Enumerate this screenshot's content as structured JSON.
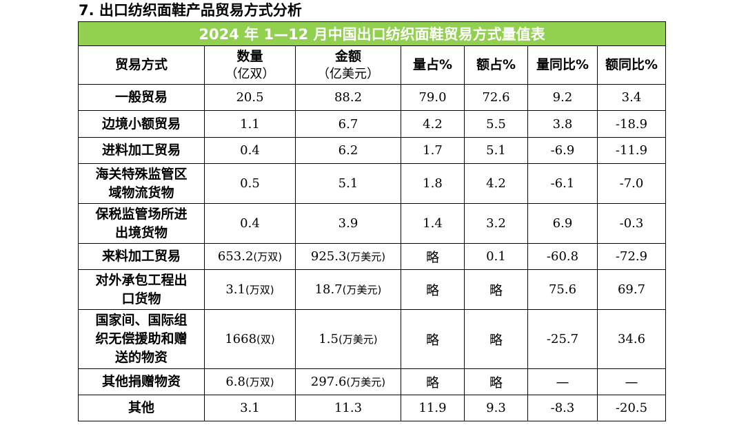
{
  "section_title": "7. 出口纺织面鞋产品贸易方式分析",
  "table_title": "2024 年 1—12 月中国出口纺织面鞋贸易方式量值表",
  "headers": {
    "mode": "贸易方式",
    "qty": "数量",
    "qty_unit": "（亿双）",
    "amt": "金额",
    "amt_unit": "（亿美元）",
    "qty_share": "量占%",
    "amt_share": "额占%",
    "qty_yoy": "量同比%",
    "amt_yoy": "额同比%"
  },
  "rows": [
    {
      "mode_lines": [
        "一般贸易"
      ],
      "qty": "20.5",
      "amt": "88.2",
      "qty_share": "79.0",
      "amt_share": "72.6",
      "qty_yoy": "9.2",
      "amt_yoy": "3.4"
    },
    {
      "mode_lines": [
        "边境小额贸易"
      ],
      "qty": "1.1",
      "amt": "6.7",
      "qty_share": "4.2",
      "amt_share": "5.5",
      "qty_yoy": "3.8",
      "amt_yoy": "-18.9"
    },
    {
      "mode_lines": [
        "进料加工贸易"
      ],
      "qty": "0.4",
      "amt": "6.2",
      "qty_share": "1.7",
      "amt_share": "5.1",
      "qty_yoy": "-6.9",
      "amt_yoy": "-11.9"
    },
    {
      "mode_lines": [
        "海关特殊监管区",
        "域物流货物"
      ],
      "qty": "0.5",
      "amt": "5.1",
      "qty_share": "1.8",
      "amt_share": "4.2",
      "qty_yoy": "-6.1",
      "amt_yoy": "-7.0"
    },
    {
      "mode_lines": [
        "保税监管场所进",
        "出境货物"
      ],
      "qty": "0.4",
      "amt": "3.9",
      "qty_share": "1.4",
      "amt_share": "3.2",
      "qty_yoy": "6.9",
      "amt_yoy": "-0.3"
    },
    {
      "mode_lines": [
        "来料加工贸易"
      ],
      "qty": "653.2",
      "qty_unit": "(万双)",
      "amt": "925.3",
      "amt_unit": "(万美元)",
      "qty_share": "略",
      "amt_share": "0.1",
      "qty_yoy": "-60.8",
      "amt_yoy": "-72.9"
    },
    {
      "mode_lines": [
        "对外承包工程出",
        "口货物"
      ],
      "qty": "3.1",
      "qty_unit": "(万双)",
      "amt": "18.7",
      "amt_unit": "(万美元)",
      "qty_share": "略",
      "amt_share": "略",
      "qty_yoy": "75.6",
      "amt_yoy": "69.7"
    },
    {
      "mode_lines": [
        "国家间、国际组",
        "织无偿援助和赠",
        "送的物资"
      ],
      "qty": "1668",
      "qty_unit": "(双)",
      "amt": "1.5",
      "amt_unit": "(万美元)",
      "qty_share": "略",
      "amt_share": "略",
      "qty_yoy": "-25.7",
      "amt_yoy": "34.6"
    },
    {
      "mode_lines": [
        "其他捐赠物资"
      ],
      "qty": "6.8",
      "qty_unit": "(万双)",
      "amt": "297.6",
      "amt_unit": "(万美元)",
      "qty_share": "略",
      "amt_share": "略",
      "qty_yoy": "—",
      "amt_yoy": "—"
    },
    {
      "mode_lines": [
        "其他"
      ],
      "qty": "3.1",
      "amt": "11.3",
      "qty_share": "11.9",
      "amt_share": "9.3",
      "qty_yoy": "-8.3",
      "amt_yoy": "-20.5"
    }
  ]
}
